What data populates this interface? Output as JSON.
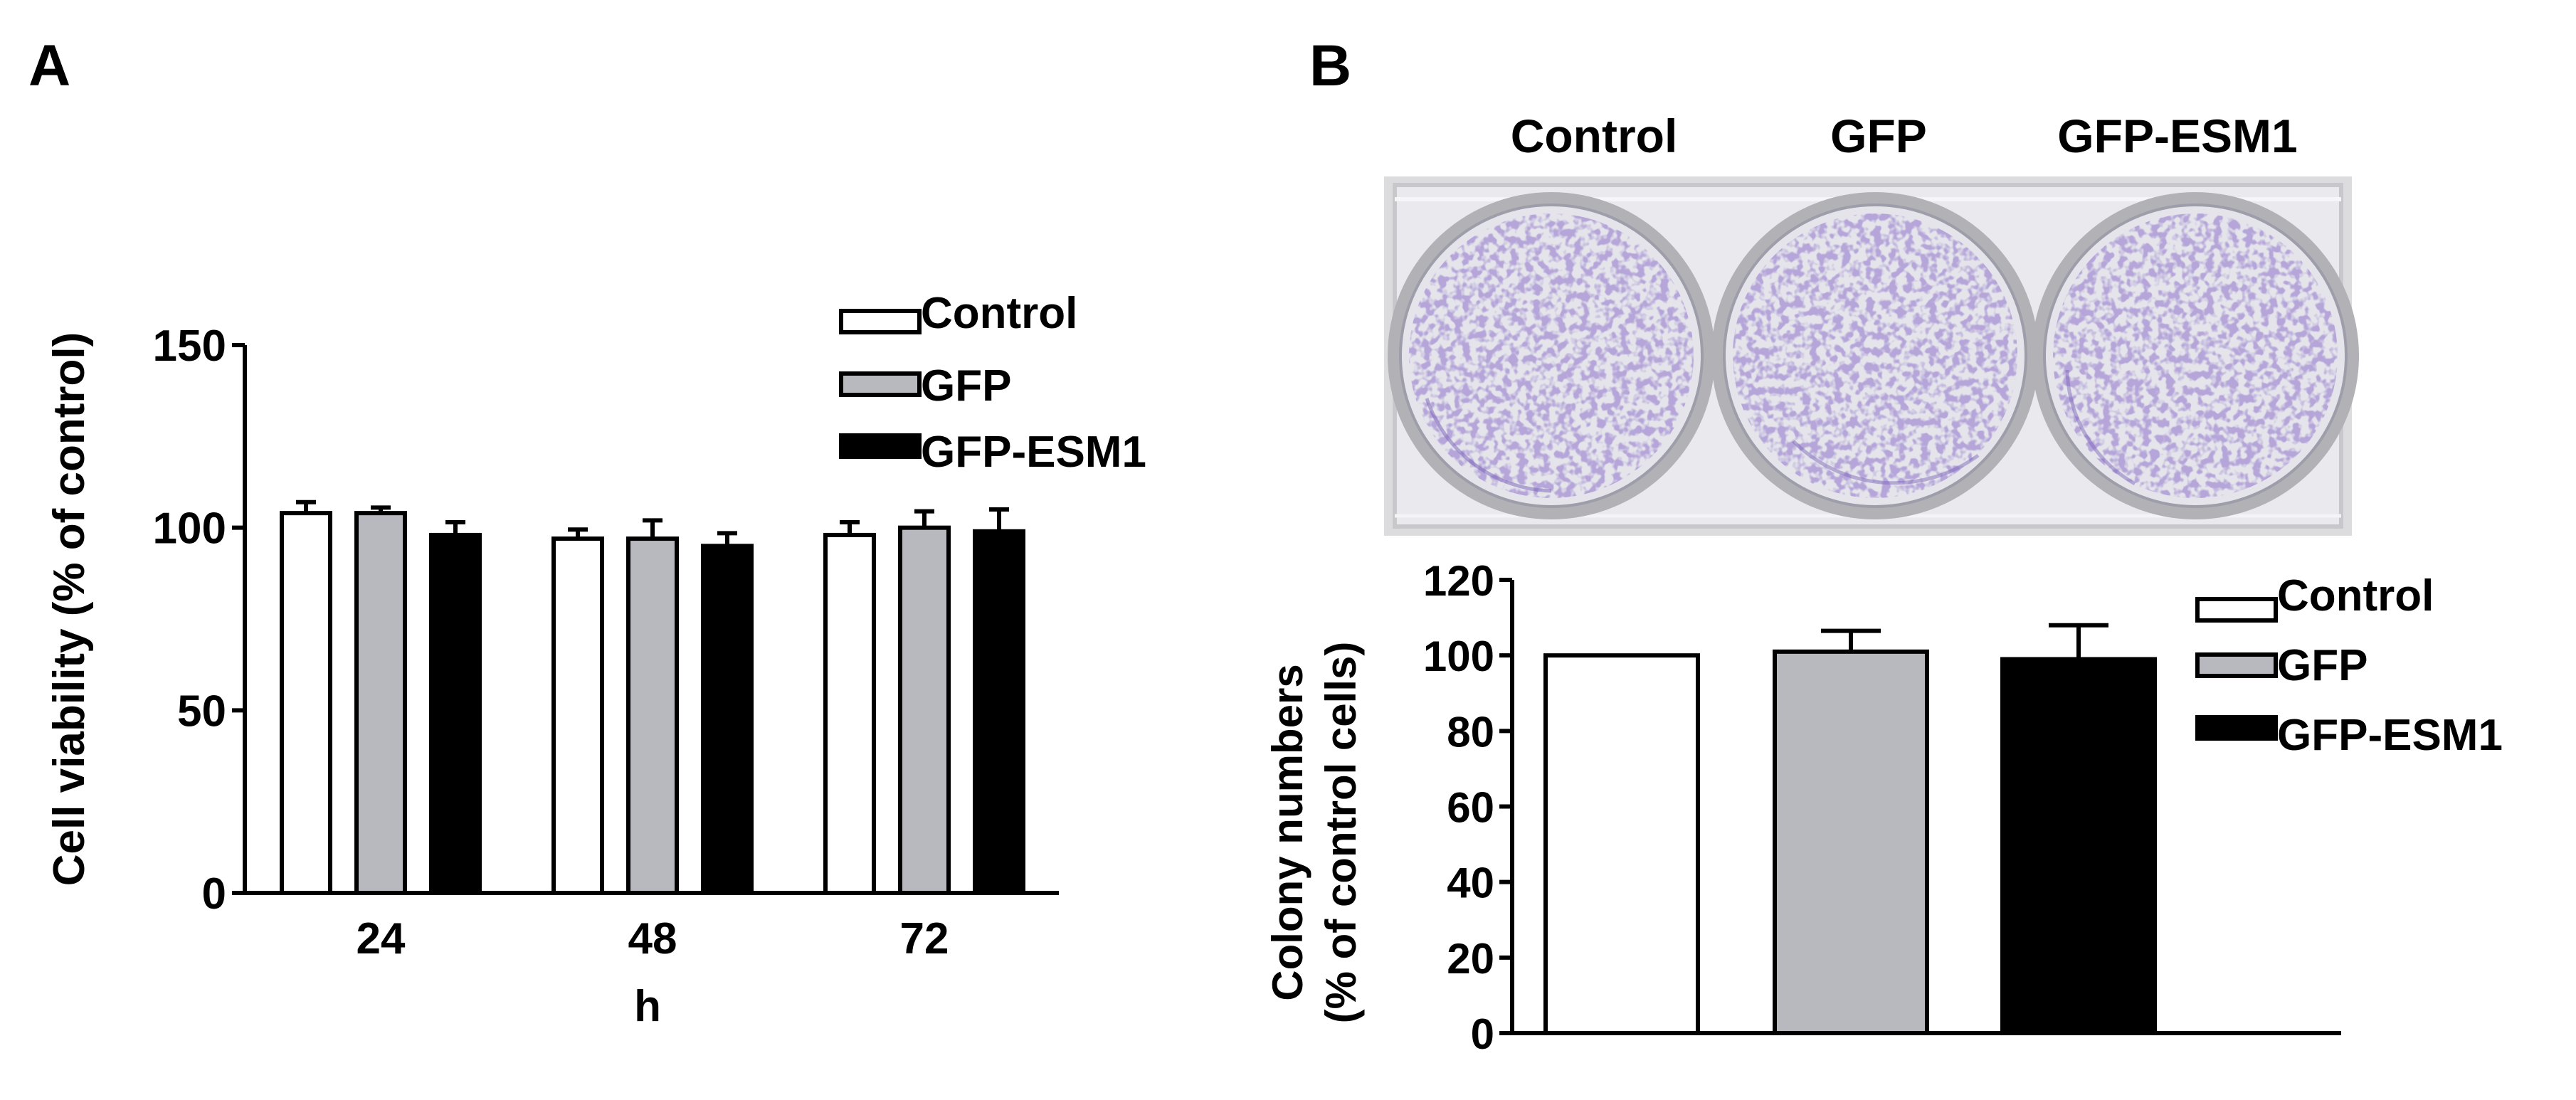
{
  "colors": {
    "control": "#ffffff",
    "gfp": "#b8b8bf",
    "esm1": "#000000",
    "axis": "#000000",
    "dye": "#7a62b8",
    "dish_bg": "#e6e6ec"
  },
  "panel_a": {
    "label": "A",
    "legend": [
      "Control",
      "GFP",
      "GFP-ESM1"
    ],
    "chart_data": {
      "type": "bar",
      "title": "",
      "xlabel": "h",
      "ylabel": "Cell viability (% of  control)",
      "categories": [
        "24",
        "48",
        "72"
      ],
      "ylim": [
        0,
        150
      ],
      "yticks": [
        "0",
        "50",
        "100",
        "150"
      ],
      "legend_position": "top-right",
      "series": [
        {
          "name": "Control",
          "values": [
            104,
            97,
            98
          ],
          "errors": [
            3,
            2.5,
            3.5
          ]
        },
        {
          "name": "GFP",
          "values": [
            104,
            97,
            100
          ],
          "errors": [
            1.5,
            5,
            4.5
          ]
        },
        {
          "name": "GFP-ESM1",
          "values": [
            98,
            95,
            99
          ],
          "errors": [
            3.5,
            3.5,
            6
          ]
        }
      ]
    }
  },
  "panel_b": {
    "label": "B",
    "plate_labels": [
      "Control",
      "GFP",
      "GFP-ESM1"
    ],
    "legend": [
      "Control",
      "GFP",
      "GFP-ESM1"
    ],
    "chart_data": {
      "type": "bar",
      "title": "",
      "xlabel": "",
      "ylabel_line1": "Colony numbers",
      "ylabel_line2": "(% of control cells)",
      "categories": [
        "Control",
        "GFP",
        "GFP-ESM1"
      ],
      "ylim": [
        0,
        120
      ],
      "yticks": [
        "0",
        "20",
        "40",
        "60",
        "80",
        "100",
        "120"
      ],
      "legend_position": "right",
      "series": [
        {
          "name": "Colony numbers",
          "values": [
            100,
            101,
            99
          ],
          "errors": [
            0,
            5.5,
            9
          ]
        }
      ]
    }
  }
}
